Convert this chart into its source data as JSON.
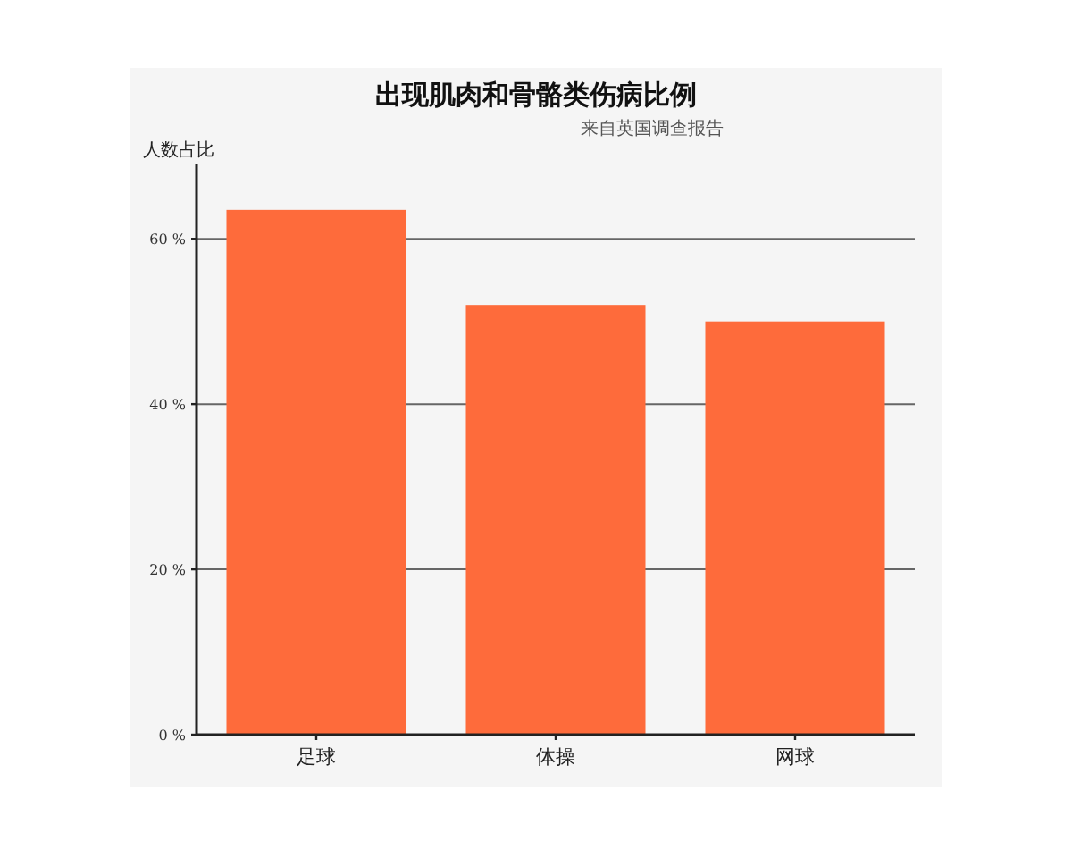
{
  "chart_data": {
    "type": "bar",
    "title": "出现肌肉和骨骼类伤病比例",
    "subtitle": "来自英国调查报告",
    "ylabel": "人数占比",
    "categories": [
      "足球",
      "体操",
      "网球"
    ],
    "values": [
      63.5,
      52,
      50
    ],
    "color": "#fe6b3b",
    "ylim": [
      0,
      69
    ],
    "yticks": [
      {
        "value": 0,
        "label": "0 %"
      },
      {
        "value": 20,
        "label": "20 %"
      },
      {
        "value": 40,
        "label": "40 %"
      },
      {
        "value": 60,
        "label": "60 %"
      }
    ],
    "grid": "y"
  }
}
